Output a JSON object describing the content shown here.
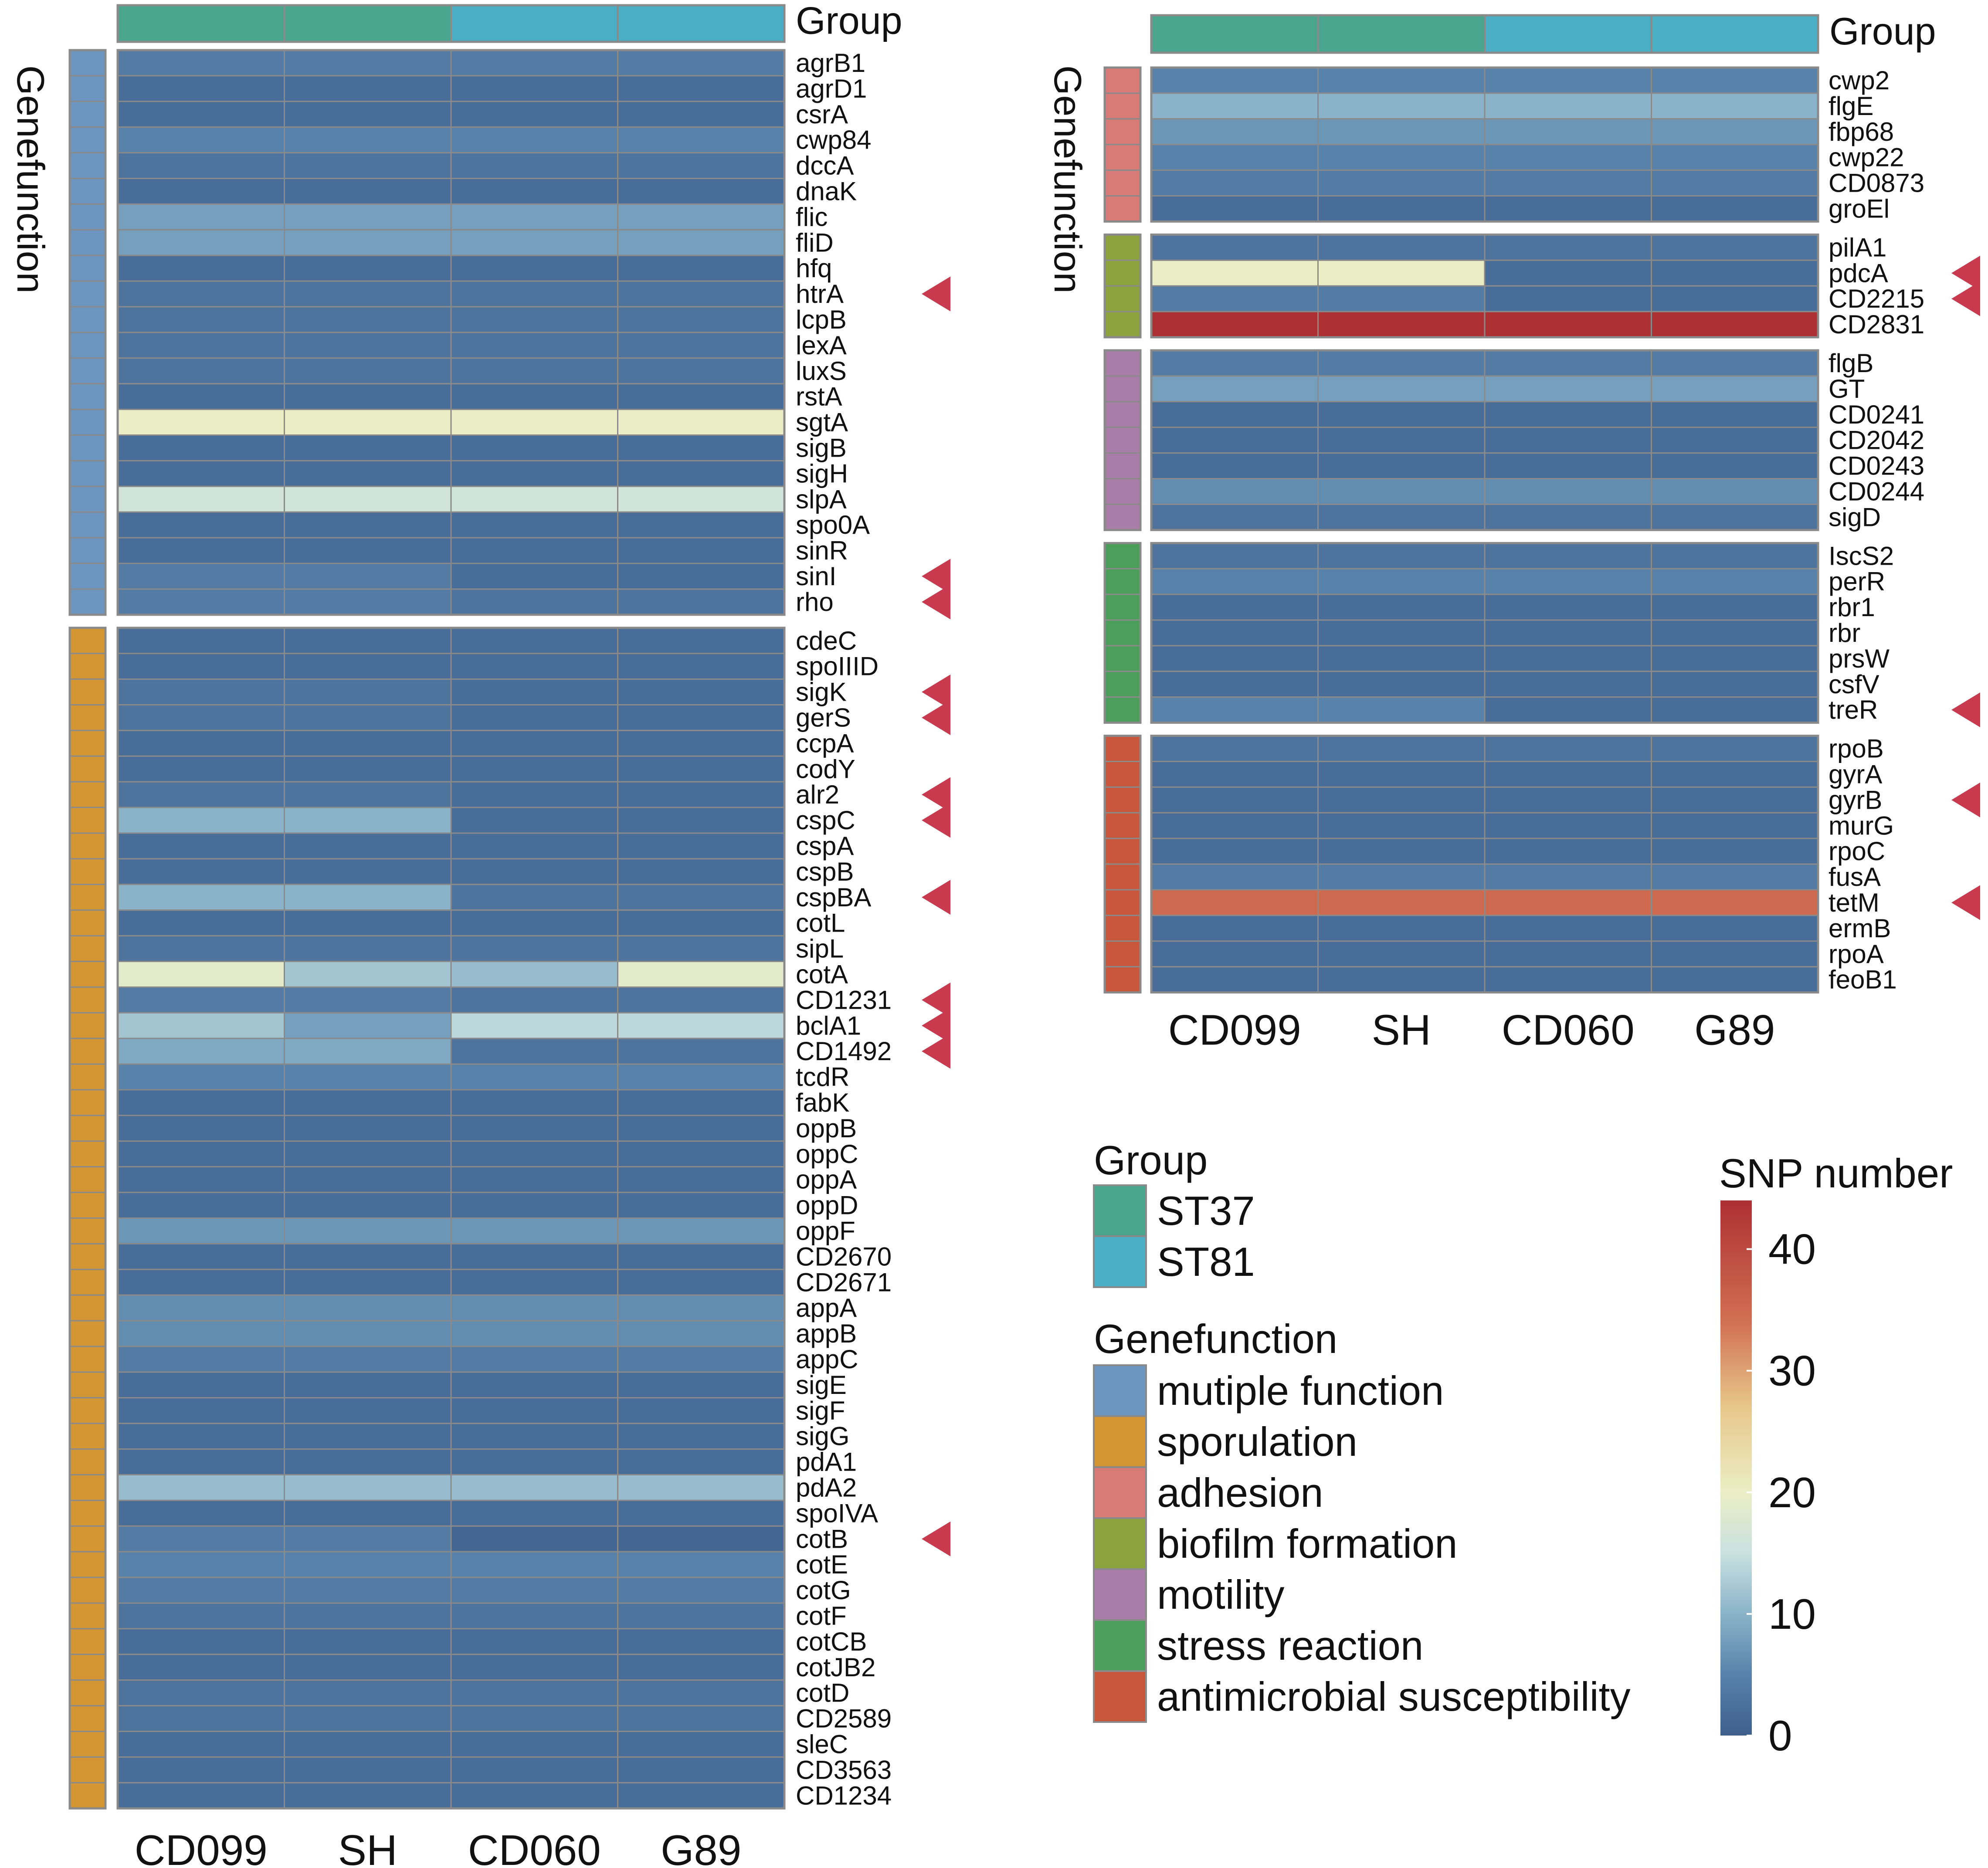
{
  "chart_data": {
    "type": "heatmap",
    "color_scale": {
      "title": "SNP number",
      "min": 0,
      "max": 44,
      "ticks": [
        0,
        10,
        20,
        30,
        40
      ],
      "stops": [
        {
          "value": 0,
          "color": "#3e5f8c"
        },
        {
          "value": 5,
          "color": "#5882aa"
        },
        {
          "value": 10,
          "color": "#8ab3c9"
        },
        {
          "value": 15,
          "color": "#c9e1e0"
        },
        {
          "value": 20,
          "color": "#ebeec5"
        },
        {
          "value": 27,
          "color": "#e7c78b"
        },
        {
          "value": 34,
          "color": "#d17052"
        },
        {
          "value": 44,
          "color": "#ad3033"
        }
      ]
    },
    "legend": {
      "group_title": "Group",
      "groups": [
        {
          "label": "ST37",
          "color": "#4aa58f"
        },
        {
          "label": "ST81",
          "color": "#4aaec4"
        }
      ],
      "function_title": "Genefunction",
      "functions": [
        {
          "label": "mutiple function",
          "color": "#6c95c0"
        },
        {
          "label": "sporulation",
          "color": "#d39632"
        },
        {
          "label": "adhesion",
          "color": "#d87b76"
        },
        {
          "label": "biofilm formation",
          "color": "#8ca33e"
        },
        {
          "label": "motility",
          "color": "#a87da8"
        },
        {
          "label": "stress reaction",
          "color": "#4b9f5b"
        },
        {
          "label": "antimicrobial susceptibility",
          "color": "#c9573c"
        }
      ]
    },
    "panels": [
      {
        "columns": [
          "CD099",
          "SH",
          "CD060",
          "G89"
        ],
        "column_groups": [
          0,
          0,
          1,
          1
        ],
        "group_track_label": "Group",
        "function_axis_label": "Genefunction",
        "blocks": [
          {
            "function": 0,
            "genes": [
              "agrB1",
              "agrD1",
              "csrA",
              "cwp84",
              "dccA",
              "dnaK",
              "flic",
              "fliD",
              "hfq",
              "htrA",
              "lcpB",
              "lexA",
              "luxS",
              "rstA",
              "sgtA",
              "sigB",
              "sigH",
              "slpA",
              "spo0A",
              "sinR",
              "sinI",
              "rho"
            ],
            "values": [
              [
                4,
                4,
                4,
                4
              ],
              [
                2,
                2,
                2,
                2
              ],
              [
                2,
                2,
                2,
                2
              ],
              [
                5,
                5,
                5,
                5
              ],
              [
                3,
                3,
                3,
                3
              ],
              [
                2,
                2,
                2,
                2
              ],
              [
                8,
                8,
                8,
                8
              ],
              [
                8,
                8,
                8,
                8
              ],
              [
                2,
                2,
                2,
                2
              ],
              [
                3,
                3,
                3,
                3
              ],
              [
                3,
                3,
                3,
                3
              ],
              [
                3,
                3,
                3,
                3
              ],
              [
                3,
                3,
                3,
                3
              ],
              [
                2,
                2,
                2,
                2
              ],
              [
                20,
                20,
                20,
                20
              ],
              [
                2,
                2,
                2,
                2
              ],
              [
                2,
                2,
                2,
                2
              ],
              [
                16,
                16,
                16,
                16
              ],
              [
                2,
                2,
                2,
                2
              ],
              [
                2,
                2,
                2,
                2
              ],
              [
                4,
                4,
                2,
                2
              ],
              [
                4,
                4,
                3,
                3
              ]
            ],
            "marked": [
              "htrA",
              "sinI",
              "rho"
            ]
          },
          {
            "function": 1,
            "genes": [
              "cdeC",
              "spoIIID",
              "sigK",
              "gerS",
              "ccpA",
              "codY",
              "alr2",
              "cspC",
              "cspA",
              "cspB",
              "cspBA",
              "cotL",
              "sipL",
              "cotA",
              "CD1231",
              "bclA1",
              "CD1492",
              "tcdR",
              "fabK",
              "oppB",
              "oppC",
              "oppA",
              "oppD",
              "oppF",
              "CD2670",
              "CD2671",
              "appA",
              "appB",
              "appC",
              "sigE",
              "sigF",
              "sigG",
              "pdA1",
              "pdA2",
              "spoIVA",
              "cotB",
              "cotE",
              "cotG",
              "cotF",
              "cotCB",
              "cotJB2",
              "cotD",
              "CD2589",
              "sleC",
              "CD3563",
              "CD1234"
            ],
            "values": [
              [
                2,
                2,
                2,
                2
              ],
              [
                2,
                2,
                2,
                2
              ],
              [
                3,
                3,
                2,
                2
              ],
              [
                3,
                3,
                2,
                2
              ],
              [
                2,
                2,
                2,
                2
              ],
              [
                2,
                2,
                2,
                2
              ],
              [
                3,
                3,
                2,
                2
              ],
              [
                10,
                10,
                2,
                2
              ],
              [
                2,
                2,
                2,
                2
              ],
              [
                2,
                2,
                2,
                2
              ],
              [
                10,
                10,
                3,
                3
              ],
              [
                2,
                2,
                2,
                2
              ],
              [
                3,
                3,
                3,
                3
              ],
              [
                19,
                12,
                11,
                19
              ],
              [
                4,
                4,
                3,
                3
              ],
              [
                12,
                8,
                14,
                14
              ],
              [
                9,
                9,
                3,
                3
              ],
              [
                5,
                5,
                5,
                5
              ],
              [
                2,
                2,
                2,
                2
              ],
              [
                2,
                2,
                2,
                2
              ],
              [
                2,
                2,
                2,
                2
              ],
              [
                2,
                2,
                2,
                2
              ],
              [
                2,
                2,
                2,
                2
              ],
              [
                7,
                7,
                7,
                7
              ],
              [
                2,
                2,
                2,
                2
              ],
              [
                2,
                2,
                2,
                2
              ],
              [
                6,
                6,
                6,
                6
              ],
              [
                6,
                6,
                6,
                6
              ],
              [
                4,
                4,
                4,
                4
              ],
              [
                2,
                2,
                2,
                2
              ],
              [
                2,
                2,
                2,
                2
              ],
              [
                2,
                2,
                2,
                2
              ],
              [
                2,
                2,
                2,
                2
              ],
              [
                11,
                11,
                11,
                11
              ],
              [
                2,
                2,
                2,
                2
              ],
              [
                4,
                4,
                1,
                1
              ],
              [
                5,
                5,
                5,
                5
              ],
              [
                4,
                4,
                4,
                4
              ],
              [
                3,
                3,
                3,
                3
              ],
              [
                2,
                2,
                2,
                2
              ],
              [
                2,
                2,
                2,
                2
              ],
              [
                3,
                3,
                3,
                3
              ],
              [
                3,
                3,
                3,
                3
              ],
              [
                2,
                2,
                2,
                2
              ],
              [
                2,
                2,
                2,
                2
              ],
              [
                2,
                2,
                2,
                2
              ]
            ],
            "marked": [
              "sigK",
              "gerS",
              "alr2",
              "cspC",
              "cspBA",
              "CD1231",
              "bclA1",
              "CD1492",
              "cotB"
            ]
          }
        ]
      },
      {
        "columns": [
          "CD099",
          "SH",
          "CD060",
          "G89"
        ],
        "column_groups": [
          0,
          0,
          1,
          1
        ],
        "group_track_label": "Group",
        "function_axis_label": "Genefunction",
        "blocks": [
          {
            "function": 2,
            "genes": [
              "cwp2",
              "flgE",
              "fbp68",
              "cwp22",
              "CD0873",
              "groEl"
            ],
            "values": [
              [
                5,
                5,
                5,
                5
              ],
              [
                10,
                10,
                10,
                10
              ],
              [
                7,
                7,
                7,
                7
              ],
              [
                5,
                5,
                5,
                5
              ],
              [
                4,
                4,
                4,
                4
              ],
              [
                2,
                2,
                2,
                2
              ]
            ],
            "marked": []
          },
          {
            "function": 3,
            "genes": [
              "pilA1",
              "pdcA",
              "CD2215",
              "CD2831"
            ],
            "values": [
              [
                3,
                3,
                3,
                3
              ],
              [
                20,
                20,
                2,
                2
              ],
              [
                4,
                4,
                2,
                2
              ],
              [
                44,
                44,
                44,
                44
              ]
            ],
            "marked": [
              "pdcA",
              "CD2215"
            ]
          },
          {
            "function": 4,
            "genes": [
              "flgB",
              "GT",
              "CD0241",
              "CD2042",
              "CD0243",
              "CD0244",
              "sigD"
            ],
            "values": [
              [
                4,
                4,
                4,
                4
              ],
              [
                8,
                8,
                8,
                8
              ],
              [
                2,
                2,
                2,
                2
              ],
              [
                2,
                2,
                2,
                2
              ],
              [
                2,
                2,
                2,
                2
              ],
              [
                6,
                6,
                6,
                6
              ],
              [
                3,
                3,
                3,
                3
              ]
            ],
            "marked": []
          },
          {
            "function": 5,
            "genes": [
              "IscS2",
              "perR",
              "rbr1",
              "rbr",
              "prsW",
              "csfV",
              "treR"
            ],
            "values": [
              [
                3,
                3,
                3,
                3
              ],
              [
                5,
                5,
                5,
                5
              ],
              [
                2,
                2,
                2,
                2
              ],
              [
                2,
                2,
                2,
                2
              ],
              [
                2,
                2,
                2,
                2
              ],
              [
                2,
                2,
                2,
                2
              ],
              [
                5,
                5,
                2,
                2
              ]
            ],
            "marked": [
              "treR"
            ]
          },
          {
            "function": 6,
            "genes": [
              "rpoB",
              "gyrA",
              "gyrB",
              "murG",
              "rpoC",
              "fusA",
              "tetM",
              "ermB",
              "rpoA",
              "feoB1"
            ],
            "values": [
              [
                3,
                3,
                3,
                3
              ],
              [
                2,
                2,
                2,
                2
              ],
              [
                2,
                2,
                2,
                2
              ],
              [
                2,
                2,
                2,
                2
              ],
              [
                2,
                2,
                2,
                2
              ],
              [
                4,
                4,
                4,
                4
              ],
              [
                35,
                35,
                35,
                35
              ],
              [
                2,
                2,
                2,
                2
              ],
              [
                2,
                2,
                2,
                2
              ],
              [
                2,
                2,
                2,
                2
              ]
            ],
            "marked": [
              "gyrB",
              "tetM"
            ]
          }
        ]
      }
    ]
  }
}
